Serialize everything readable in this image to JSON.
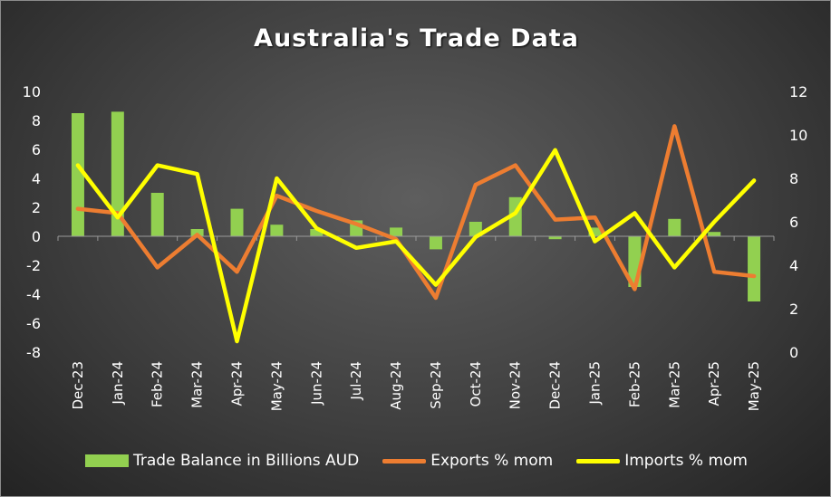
{
  "chart_data": {
    "type": "bar",
    "title": "Australia's Trade Data",
    "categories": [
      "Dec-23",
      "Jan-24",
      "Feb-24",
      "Mar-24",
      "Apr-24",
      "May-24",
      "Jun-24",
      "Jul-24",
      "Aug-24",
      "Sep-24",
      "Oct-24",
      "Nov-24",
      "Dec-24",
      "Jan-25",
      "Feb-25",
      "Mar-25",
      "Apr-25",
      "May-25"
    ],
    "y_left": {
      "ylim": [
        -8,
        10
      ],
      "ticks": [
        -8,
        -6,
        -4,
        -2,
        0,
        2,
        4,
        6,
        8,
        10
      ]
    },
    "y_right": {
      "ylim": [
        0,
        12
      ],
      "ticks": [
        0,
        2,
        4,
        6,
        8,
        10,
        12
      ]
    },
    "series": [
      {
        "name": "Trade Balance in Billions AUD",
        "type": "bar",
        "axis": "left",
        "color": "#92d050",
        "values": [
          8.5,
          8.6,
          3.0,
          0.5,
          1.9,
          0.8,
          0.5,
          1.1,
          0.6,
          -0.9,
          1.0,
          2.7,
          -0.2,
          0.6,
          -3.5,
          1.2,
          0.3,
          -4.5
        ]
      },
      {
        "name": "Exports % mom",
        "type": "line",
        "axis": "right",
        "color": "#ed7d31",
        "values": [
          6.6,
          6.4,
          3.9,
          5.4,
          3.7,
          7.2,
          6.5,
          5.9,
          5.2,
          2.5,
          7.7,
          8.6,
          6.1,
          6.2,
          2.9,
          10.4,
          3.7,
          3.5
        ]
      },
      {
        "name": "Imports % mom",
        "type": "line",
        "axis": "right",
        "color": "#ffff00",
        "values": [
          8.6,
          6.2,
          8.6,
          8.2,
          0.5,
          8.0,
          5.7,
          4.8,
          5.1,
          3.1,
          5.3,
          6.4,
          9.3,
          5.1,
          6.4,
          3.9,
          6.0,
          7.9
        ]
      }
    ],
    "legend_position": "bottom",
    "grid": false
  }
}
